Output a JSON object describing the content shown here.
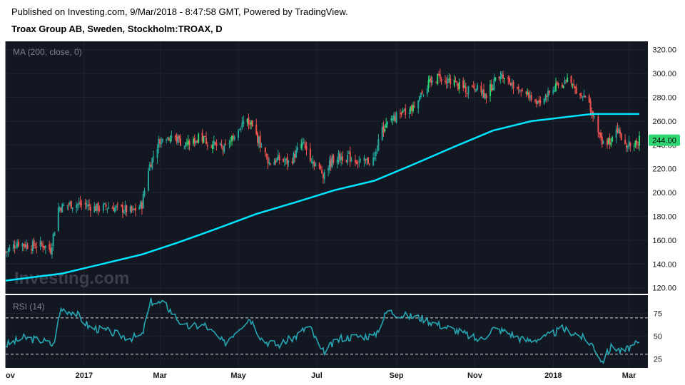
{
  "header": {
    "published": "Published on Investing.com, 9/Mar/2018 - 8:47:58 GMT, Powered by TradingView.",
    "instrument": "Troax Group AB, Sweden, Stockholm:TROAX, D"
  },
  "watermark": "Investing.com",
  "colors": {
    "background": "#131722",
    "up": "#26a69a",
    "upBright": "#2ed573",
    "down": "#ef5350",
    "ma": "#00e5ff",
    "rsi": "#26a6b3",
    "priceLabel": "#2ed573"
  },
  "chart_data": [
    {
      "type": "candlestick",
      "indicator_label": "MA (200, close, 0)",
      "ylim": [
        115,
        327
      ],
      "yticks": [
        120,
        140,
        160,
        180,
        200,
        220,
        240,
        260,
        280,
        300,
        320
      ],
      "ytick_labels": [
        "120.00",
        "140.00",
        "160.00",
        "180.00",
        "200.00",
        "220.00",
        "240.00",
        "260.00",
        "280.00",
        "300.00",
        "320.00"
      ],
      "last_price": 244.0,
      "last_price_label": "244.00",
      "x_axis": {
        "start": "2016-11-01",
        "end": "2018-03-09"
      },
      "xticks": [
        {
          "label": "ov",
          "date": "2016-11-01"
        },
        {
          "label": "2017",
          "date": "2017-01-01"
        },
        {
          "label": "Mar",
          "date": "2017-03-01"
        },
        {
          "label": "May",
          "date": "2017-05-01"
        },
        {
          "label": "Jul",
          "date": "2017-07-01"
        },
        {
          "label": "Sep",
          "date": "2017-09-01"
        },
        {
          "label": "Nov",
          "date": "2017-11-01"
        },
        {
          "label": "2018",
          "date": "2018-01-01"
        },
        {
          "label": "Mar",
          "date": "2018-03-01"
        }
      ],
      "close_path": [
        {
          "date": "2016-11-01",
          "close": 150
        },
        {
          "date": "2016-11-10",
          "close": 158
        },
        {
          "date": "2016-11-20",
          "close": 155
        },
        {
          "date": "2016-11-30",
          "close": 156
        },
        {
          "date": "2016-12-06",
          "close": 152
        },
        {
          "date": "2016-12-12",
          "close": 187
        },
        {
          "date": "2016-12-20",
          "close": 190
        },
        {
          "date": "2017-01-01",
          "close": 190
        },
        {
          "date": "2017-01-10",
          "close": 187
        },
        {
          "date": "2017-01-20",
          "close": 188
        },
        {
          "date": "2017-02-01",
          "close": 186
        },
        {
          "date": "2017-02-08",
          "close": 184
        },
        {
          "date": "2017-02-15",
          "close": 190
        },
        {
          "date": "2017-02-20",
          "close": 220
        },
        {
          "date": "2017-02-28",
          "close": 242
        },
        {
          "date": "2017-03-10",
          "close": 248
        },
        {
          "date": "2017-03-20",
          "close": 240
        },
        {
          "date": "2017-04-01",
          "close": 246
        },
        {
          "date": "2017-04-10",
          "close": 241
        },
        {
          "date": "2017-04-20",
          "close": 236
        },
        {
          "date": "2017-05-01",
          "close": 255
        },
        {
          "date": "2017-05-08",
          "close": 262
        },
        {
          "date": "2017-05-15",
          "close": 248
        },
        {
          "date": "2017-05-25",
          "close": 225
        },
        {
          "date": "2017-06-01",
          "close": 228
        },
        {
          "date": "2017-06-10",
          "close": 225
        },
        {
          "date": "2017-06-20",
          "close": 242
        },
        {
          "date": "2017-06-27",
          "close": 228
        },
        {
          "date": "2017-07-06",
          "close": 216
        },
        {
          "date": "2017-07-15",
          "close": 230
        },
        {
          "date": "2017-07-25",
          "close": 230
        },
        {
          "date": "2017-08-05",
          "close": 225
        },
        {
          "date": "2017-08-15",
          "close": 228
        },
        {
          "date": "2017-08-20",
          "close": 250
        },
        {
          "date": "2017-08-28",
          "close": 262
        },
        {
          "date": "2017-09-05",
          "close": 265
        },
        {
          "date": "2017-09-15",
          "close": 272
        },
        {
          "date": "2017-09-25",
          "close": 290
        },
        {
          "date": "2017-10-05",
          "close": 298
        },
        {
          "date": "2017-10-15",
          "close": 292
        },
        {
          "date": "2017-10-25",
          "close": 286
        },
        {
          "date": "2017-11-01",
          "close": 288
        },
        {
          "date": "2017-11-10",
          "close": 282
        },
        {
          "date": "2017-11-20",
          "close": 300
        },
        {
          "date": "2017-11-30",
          "close": 292
        },
        {
          "date": "2017-12-10",
          "close": 285
        },
        {
          "date": "2017-12-20",
          "close": 276
        },
        {
          "date": "2017-12-28",
          "close": 282
        },
        {
          "date": "2018-01-05",
          "close": 290
        },
        {
          "date": "2018-01-12",
          "close": 294
        },
        {
          "date": "2018-01-22",
          "close": 284
        },
        {
          "date": "2018-01-30",
          "close": 272
        },
        {
          "date": "2018-02-04",
          "close": 252
        },
        {
          "date": "2018-02-08",
          "close": 240
        },
        {
          "date": "2018-02-14",
          "close": 244
        },
        {
          "date": "2018-02-20",
          "close": 254
        },
        {
          "date": "2018-02-26",
          "close": 238
        },
        {
          "date": "2018-03-02",
          "close": 242
        },
        {
          "date": "2018-03-09",
          "close": 244
        }
      ],
      "ma_path": [
        {
          "date": "2016-11-01",
          "ma": 126
        },
        {
          "date": "2016-12-15",
          "ma": 132
        },
        {
          "date": "2017-01-15",
          "ma": 140
        },
        {
          "date": "2017-02-15",
          "ma": 148
        },
        {
          "date": "2017-03-15",
          "ma": 158
        },
        {
          "date": "2017-04-15",
          "ma": 170
        },
        {
          "date": "2017-05-15",
          "ma": 182
        },
        {
          "date": "2017-06-15",
          "ma": 192
        },
        {
          "date": "2017-07-15",
          "ma": 202
        },
        {
          "date": "2017-08-15",
          "ma": 210
        },
        {
          "date": "2017-09-15",
          "ma": 224
        },
        {
          "date": "2017-10-15",
          "ma": 238
        },
        {
          "date": "2017-11-15",
          "ma": 252
        },
        {
          "date": "2017-12-15",
          "ma": 260
        },
        {
          "date": "2018-01-15",
          "ma": 264
        },
        {
          "date": "2018-01-31",
          "ma": 266
        },
        {
          "date": "2018-03-09",
          "ma": 266
        }
      ]
    },
    {
      "type": "line",
      "indicator_label": "RSI (14)",
      "ylim": [
        15,
        95
      ],
      "yticks": [
        25,
        50,
        75
      ],
      "ytick_labels": [
        "25",
        "50",
        "75"
      ],
      "bands": [
        30,
        70
      ],
      "rsi_path": [
        {
          "date": "2016-11-01",
          "rsi": 40
        },
        {
          "date": "2016-11-15",
          "rsi": 48
        },
        {
          "date": "2016-11-30",
          "rsi": 45
        },
        {
          "date": "2016-12-08",
          "rsi": 40
        },
        {
          "date": "2016-12-14",
          "rsi": 80
        },
        {
          "date": "2016-12-25",
          "rsi": 76
        },
        {
          "date": "2017-01-05",
          "rsi": 60
        },
        {
          "date": "2017-01-20",
          "rsi": 55
        },
        {
          "date": "2017-02-05",
          "rsi": 48
        },
        {
          "date": "2017-02-15",
          "rsi": 50
        },
        {
          "date": "2017-02-22",
          "rsi": 88
        },
        {
          "date": "2017-03-05",
          "rsi": 85
        },
        {
          "date": "2017-03-20",
          "rsi": 60
        },
        {
          "date": "2017-04-05",
          "rsi": 62
        },
        {
          "date": "2017-04-20",
          "rsi": 42
        },
        {
          "date": "2017-05-02",
          "rsi": 60
        },
        {
          "date": "2017-05-10",
          "rsi": 70
        },
        {
          "date": "2017-05-20",
          "rsi": 45
        },
        {
          "date": "2017-06-01",
          "rsi": 40
        },
        {
          "date": "2017-06-15",
          "rsi": 50
        },
        {
          "date": "2017-06-25",
          "rsi": 62
        },
        {
          "date": "2017-07-05",
          "rsi": 32
        },
        {
          "date": "2017-07-20",
          "rsi": 48
        },
        {
          "date": "2017-08-05",
          "rsi": 50
        },
        {
          "date": "2017-08-15",
          "rsi": 50
        },
        {
          "date": "2017-08-25",
          "rsi": 78
        },
        {
          "date": "2017-09-05",
          "rsi": 73
        },
        {
          "date": "2017-09-20",
          "rsi": 70
        },
        {
          "date": "2017-10-05",
          "rsi": 62
        },
        {
          "date": "2017-10-20",
          "rsi": 55
        },
        {
          "date": "2017-11-05",
          "rsi": 45
        },
        {
          "date": "2017-11-15",
          "rsi": 58
        },
        {
          "date": "2017-11-25",
          "rsi": 55
        },
        {
          "date": "2017-12-10",
          "rsi": 45
        },
        {
          "date": "2017-12-25",
          "rsi": 48
        },
        {
          "date": "2018-01-08",
          "rsi": 58
        },
        {
          "date": "2018-01-20",
          "rsi": 52
        },
        {
          "date": "2018-02-01",
          "rsi": 40
        },
        {
          "date": "2018-02-08",
          "rsi": 22
        },
        {
          "date": "2018-02-16",
          "rsi": 40
        },
        {
          "date": "2018-02-24",
          "rsi": 32
        },
        {
          "date": "2018-03-02",
          "rsi": 38
        },
        {
          "date": "2018-03-09",
          "rsi": 42
        }
      ]
    }
  ]
}
